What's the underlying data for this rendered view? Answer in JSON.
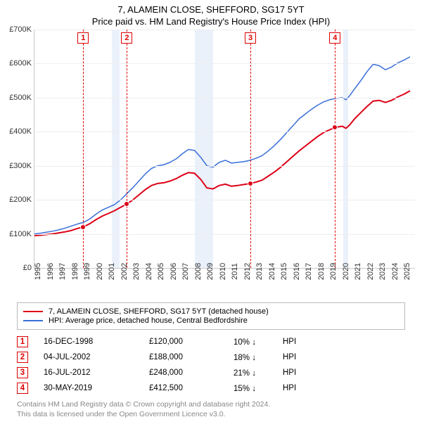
{
  "title": "7, ALAMEIN CLOSE, SHEFFORD, SG17 5YT",
  "subtitle": "Price paid vs. HM Land Registry's House Price Index (HPI)",
  "chart": {
    "type": "line",
    "background_color": "#ffffff",
    "grid_color": "#eeeeee",
    "axis_color": "#cccccc",
    "band_color": "#eaf1fb",
    "label_fontsize": 11,
    "x": {
      "min": 1995,
      "max": 2025.9,
      "ticks": [
        1995,
        1996,
        1997,
        1998,
        1999,
        2000,
        2001,
        2002,
        2003,
        2004,
        2005,
        2006,
        2007,
        2008,
        2009,
        2010,
        2011,
        2012,
        2013,
        2014,
        2015,
        2016,
        2017,
        2018,
        2019,
        2020,
        2021,
        2022,
        2023,
        2024,
        2025
      ]
    },
    "y": {
      "min": 0,
      "max": 700000,
      "ticks": [
        0,
        100000,
        200000,
        300000,
        400000,
        500000,
        600000,
        700000
      ],
      "tick_labels": [
        "£0",
        "£100K",
        "£200K",
        "£300K",
        "£400K",
        "£500K",
        "£600K",
        "£700K"
      ]
    },
    "recession_bands": [
      {
        "from": 2001.3,
        "to": 2001.9
      },
      {
        "from": 2008.0,
        "to": 2009.5
      },
      {
        "from": 2020.1,
        "to": 2020.5
      }
    ],
    "markers": [
      {
        "n": 1,
        "x": 1998.96
      },
      {
        "n": 2,
        "x": 2002.51
      },
      {
        "n": 3,
        "x": 2012.54
      },
      {
        "n": 4,
        "x": 2019.41
      }
    ],
    "series": [
      {
        "id": "subject",
        "label": "7, ALAMEIN CLOSE, SHEFFORD, SG17 5YT (detached house)",
        "color": "#dd0016",
        "line_width": 2,
        "points": [
          [
            1995.0,
            95000
          ],
          [
            1995.5,
            96000
          ],
          [
            1996.0,
            98000
          ],
          [
            1996.5,
            100000
          ],
          [
            1997.0,
            103000
          ],
          [
            1997.5,
            106000
          ],
          [
            1998.0,
            110000
          ],
          [
            1998.5,
            116000
          ],
          [
            1998.96,
            120000
          ],
          [
            1999.5,
            130000
          ],
          [
            2000.0,
            142000
          ],
          [
            2000.5,
            152000
          ],
          [
            2001.0,
            160000
          ],
          [
            2001.5,
            168000
          ],
          [
            2002.0,
            178000
          ],
          [
            2002.51,
            188000
          ],
          [
            2003.0,
            200000
          ],
          [
            2003.5,
            215000
          ],
          [
            2004.0,
            230000
          ],
          [
            2004.5,
            242000
          ],
          [
            2005.0,
            248000
          ],
          [
            2005.5,
            250000
          ],
          [
            2006.0,
            255000
          ],
          [
            2006.5,
            262000
          ],
          [
            2007.0,
            272000
          ],
          [
            2007.5,
            280000
          ],
          [
            2008.0,
            278000
          ],
          [
            2008.5,
            260000
          ],
          [
            2009.0,
            235000
          ],
          [
            2009.5,
            232000
          ],
          [
            2010.0,
            242000
          ],
          [
            2010.5,
            246000
          ],
          [
            2011.0,
            240000
          ],
          [
            2011.5,
            242000
          ],
          [
            2012.0,
            245000
          ],
          [
            2012.54,
            248000
          ],
          [
            2013.0,
            252000
          ],
          [
            2013.5,
            258000
          ],
          [
            2014.0,
            270000
          ],
          [
            2014.5,
            282000
          ],
          [
            2015.0,
            296000
          ],
          [
            2015.5,
            312000
          ],
          [
            2016.0,
            328000
          ],
          [
            2016.5,
            344000
          ],
          [
            2017.0,
            358000
          ],
          [
            2017.5,
            372000
          ],
          [
            2018.0,
            386000
          ],
          [
            2018.5,
            398000
          ],
          [
            2019.0,
            406000
          ],
          [
            2019.41,
            412500
          ],
          [
            2019.8,
            415000
          ],
          [
            2020.0,
            416000
          ],
          [
            2020.3,
            410000
          ],
          [
            2020.6,
            420000
          ],
          [
            2021.0,
            438000
          ],
          [
            2021.5,
            456000
          ],
          [
            2022.0,
            474000
          ],
          [
            2022.5,
            490000
          ],
          [
            2023.0,
            492000
          ],
          [
            2023.5,
            486000
          ],
          [
            2024.0,
            492000
          ],
          [
            2024.5,
            502000
          ],
          [
            2025.0,
            510000
          ],
          [
            2025.5,
            520000
          ]
        ],
        "sale_points": [
          {
            "x": 1998.96,
            "y": 120000
          },
          {
            "x": 2002.51,
            "y": 188000
          },
          {
            "x": 2012.54,
            "y": 248000
          },
          {
            "x": 2019.41,
            "y": 412500
          }
        ]
      },
      {
        "id": "hpi",
        "label": "HPI: Average price, detached house, Central Bedfordshire",
        "color": "#3a6fd8",
        "line_width": 1.5,
        "points": [
          [
            1995.0,
            100000
          ],
          [
            1995.5,
            102000
          ],
          [
            1996.0,
            105000
          ],
          [
            1996.5,
            108000
          ],
          [
            1997.0,
            112000
          ],
          [
            1997.5,
            117000
          ],
          [
            1998.0,
            123000
          ],
          [
            1998.5,
            129000
          ],
          [
            1999.0,
            134000
          ],
          [
            1999.5,
            144000
          ],
          [
            2000.0,
            158000
          ],
          [
            2000.5,
            170000
          ],
          [
            2001.0,
            178000
          ],
          [
            2001.5,
            186000
          ],
          [
            2002.0,
            200000
          ],
          [
            2002.5,
            218000
          ],
          [
            2003.0,
            236000
          ],
          [
            2003.5,
            256000
          ],
          [
            2004.0,
            276000
          ],
          [
            2004.5,
            292000
          ],
          [
            2005.0,
            300000
          ],
          [
            2005.5,
            303000
          ],
          [
            2006.0,
            310000
          ],
          [
            2006.5,
            320000
          ],
          [
            2007.0,
            335000
          ],
          [
            2007.5,
            348000
          ],
          [
            2008.0,
            345000
          ],
          [
            2008.5,
            325000
          ],
          [
            2009.0,
            300000
          ],
          [
            2009.5,
            296000
          ],
          [
            2010.0,
            310000
          ],
          [
            2010.5,
            316000
          ],
          [
            2011.0,
            308000
          ],
          [
            2011.5,
            310000
          ],
          [
            2012.0,
            312000
          ],
          [
            2012.5,
            316000
          ],
          [
            2013.0,
            322000
          ],
          [
            2013.5,
            330000
          ],
          [
            2014.0,
            344000
          ],
          [
            2014.5,
            360000
          ],
          [
            2015.0,
            378000
          ],
          [
            2015.5,
            398000
          ],
          [
            2016.0,
            418000
          ],
          [
            2016.5,
            438000
          ],
          [
            2017.0,
            452000
          ],
          [
            2017.5,
            466000
          ],
          [
            2018.0,
            478000
          ],
          [
            2018.5,
            488000
          ],
          [
            2019.0,
            494000
          ],
          [
            2019.5,
            498000
          ],
          [
            2020.0,
            500000
          ],
          [
            2020.3,
            494000
          ],
          [
            2020.6,
            506000
          ],
          [
            2021.0,
            526000
          ],
          [
            2021.5,
            550000
          ],
          [
            2022.0,
            576000
          ],
          [
            2022.5,
            598000
          ],
          [
            2023.0,
            594000
          ],
          [
            2023.5,
            582000
          ],
          [
            2024.0,
            590000
          ],
          [
            2024.5,
            602000
          ],
          [
            2025.0,
            610000
          ],
          [
            2025.5,
            620000
          ]
        ]
      }
    ]
  },
  "legend": {
    "subject": "7, ALAMEIN CLOSE, SHEFFORD, SG17 5YT (detached house)",
    "hpi": "HPI: Average price, detached house, Central Bedfordshire"
  },
  "hpi_suffix": "HPI",
  "transactions": [
    {
      "n": "1",
      "date": "16-DEC-1998",
      "price": "£120,000",
      "delta": "10%",
      "dir": "down"
    },
    {
      "n": "2",
      "date": "04-JUL-2002",
      "price": "£188,000",
      "delta": "18%",
      "dir": "down"
    },
    {
      "n": "3",
      "date": "16-JUL-2012",
      "price": "£248,000",
      "delta": "21%",
      "dir": "down"
    },
    {
      "n": "4",
      "date": "30-MAY-2019",
      "price": "£412,500",
      "delta": "15%",
      "dir": "down"
    }
  ],
  "footer": {
    "l1": "Contains HM Land Registry data © Crown copyright and database right 2024.",
    "l2": "This data is licensed under the Open Government Licence v3.0."
  }
}
